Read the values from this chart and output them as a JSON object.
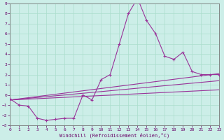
{
  "bg_color": "#cceee8",
  "line_color": "#993399",
  "xlim": [
    0,
    23
  ],
  "ylim": [
    -3,
    9
  ],
  "xticks": [
    0,
    1,
    2,
    3,
    4,
    5,
    6,
    7,
    8,
    9,
    10,
    11,
    12,
    13,
    14,
    15,
    16,
    17,
    18,
    19,
    20,
    21,
    22,
    23
  ],
  "yticks": [
    -3,
    -2,
    -1,
    0,
    1,
    2,
    3,
    4,
    5,
    6,
    7,
    8,
    9
  ],
  "line1_x": [
    0,
    1,
    2,
    3,
    4,
    5,
    6,
    7,
    8,
    9,
    10,
    11,
    12,
    13,
    14,
    15,
    16,
    17,
    18,
    19,
    20,
    21,
    22,
    23
  ],
  "line1_y": [
    -0.4,
    -1.0,
    -1.1,
    -2.3,
    -2.5,
    -2.4,
    -2.3,
    -2.3,
    0.0,
    -0.5,
    1.5,
    2.0,
    5.0,
    8.0,
    9.5,
    7.3,
    6.0,
    3.8,
    3.5,
    4.2,
    2.3,
    2.0,
    2.0,
    2.0
  ],
  "line2_x": [
    0,
    23
  ],
  "line2_y": [
    -0.5,
    2.1
  ],
  "line3_x": [
    0,
    23
  ],
  "line3_y": [
    -0.5,
    1.4
  ],
  "line4_x": [
    0,
    23
  ],
  "line4_y": [
    -0.5,
    0.5
  ],
  "xlabel": "Windchill (Refroidissement éolien,°C)"
}
